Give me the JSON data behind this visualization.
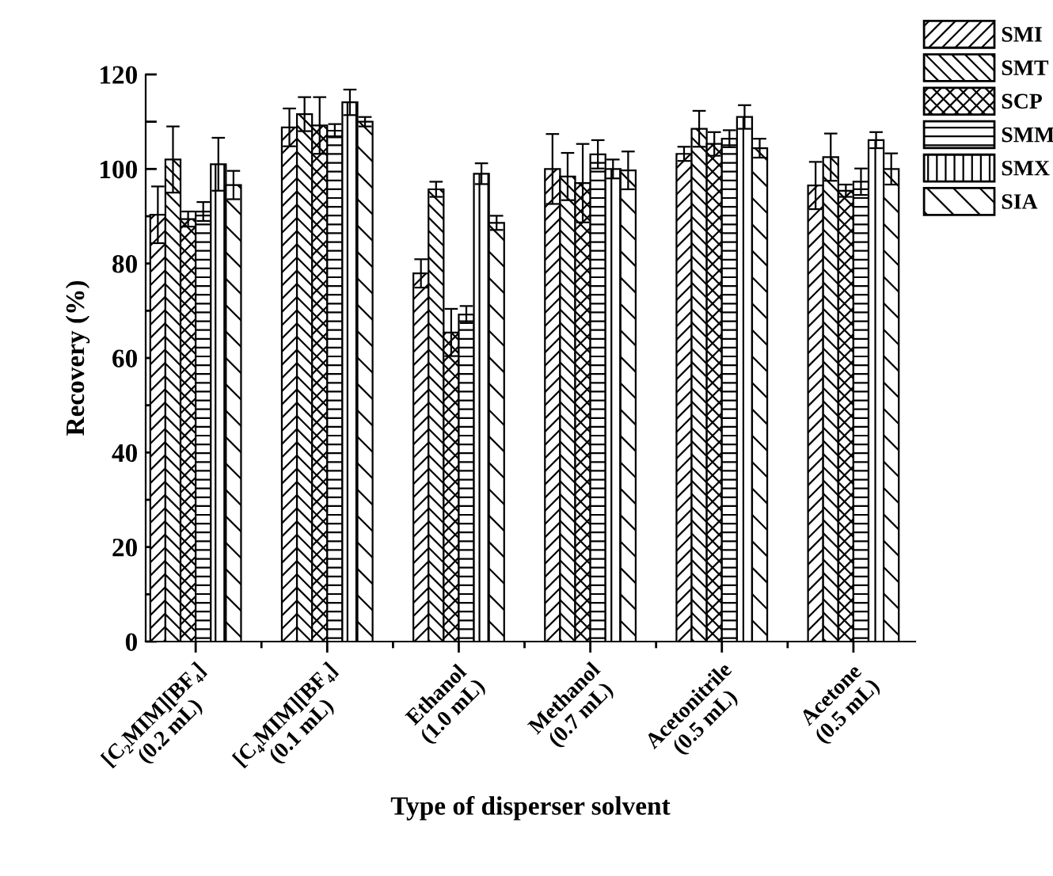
{
  "chart_data": {
    "type": "bar",
    "xlabel": "Type of disperser solvent",
    "ylabel": "Recovery (%)",
    "categories": [
      "[C₂MIM][BF₄]\n(0.2 mL)",
      "[C₄MIM][BF₄]\n(0.1 mL)",
      "Ethanol\n(1.0 mL)",
      "Methanol\n(0.7 mL)",
      "Acetonitrile\n(0.5 mL)",
      "Acetone\n(0.5 mL)"
    ],
    "series": [
      {
        "name": "SMI",
        "color": "#000000",
        "values": [
          90.3,
          108.8,
          77.9,
          100,
          103.2,
          96.5
        ],
        "errors": [
          6,
          4,
          3,
          7.4,
          1.5,
          5
        ]
      },
      {
        "name": "SMT",
        "color": "#000000",
        "values": [
          102,
          111.6,
          95.7,
          98.4,
          108.5,
          102.5
        ],
        "errors": [
          7,
          3.6,
          1.6,
          5,
          3.8,
          5
        ]
      },
      {
        "name": "SCP",
        "color": "#000000",
        "values": [
          89.4,
          109.2,
          65.4,
          97,
          105.3,
          95.4
        ],
        "errors": [
          1.6,
          6,
          5,
          8.3,
          2.5,
          1.3
        ]
      },
      {
        "name": "SMM",
        "color": "#000000",
        "values": [
          91,
          108.1,
          69.2,
          103.1,
          106.4,
          97.3
        ],
        "errors": [
          2,
          1.4,
          1.8,
          3,
          1.8,
          2.8
        ]
      },
      {
        "name": "SMX",
        "color": "#000000",
        "values": [
          101,
          114.1,
          99,
          100,
          111,
          106.1
        ],
        "errors": [
          5.6,
          2.7,
          2.2,
          2,
          2.5,
          1.7
        ]
      },
      {
        "name": "SIA",
        "color": "#000000",
        "values": [
          96.6,
          110,
          88.6,
          99.7,
          104.4,
          100
        ],
        "errors": [
          3,
          1,
          1.5,
          4,
          2,
          3.3
        ]
      }
    ],
    "ylim": [
      0,
      120
    ],
    "yticks": [
      0,
      {
        "value": 10,
        "label": null
      },
      20,
      {
        "value": 30,
        "label": null
      },
      40,
      {
        "value": 50,
        "label": null
      },
      60,
      {
        "value": 70,
        "label": null
      },
      80,
      {
        "value": 90,
        "label": null
      },
      100,
      {
        "value": 110,
        "label": null
      },
      120
    ],
    "grid": false,
    "legend": "top right"
  }
}
